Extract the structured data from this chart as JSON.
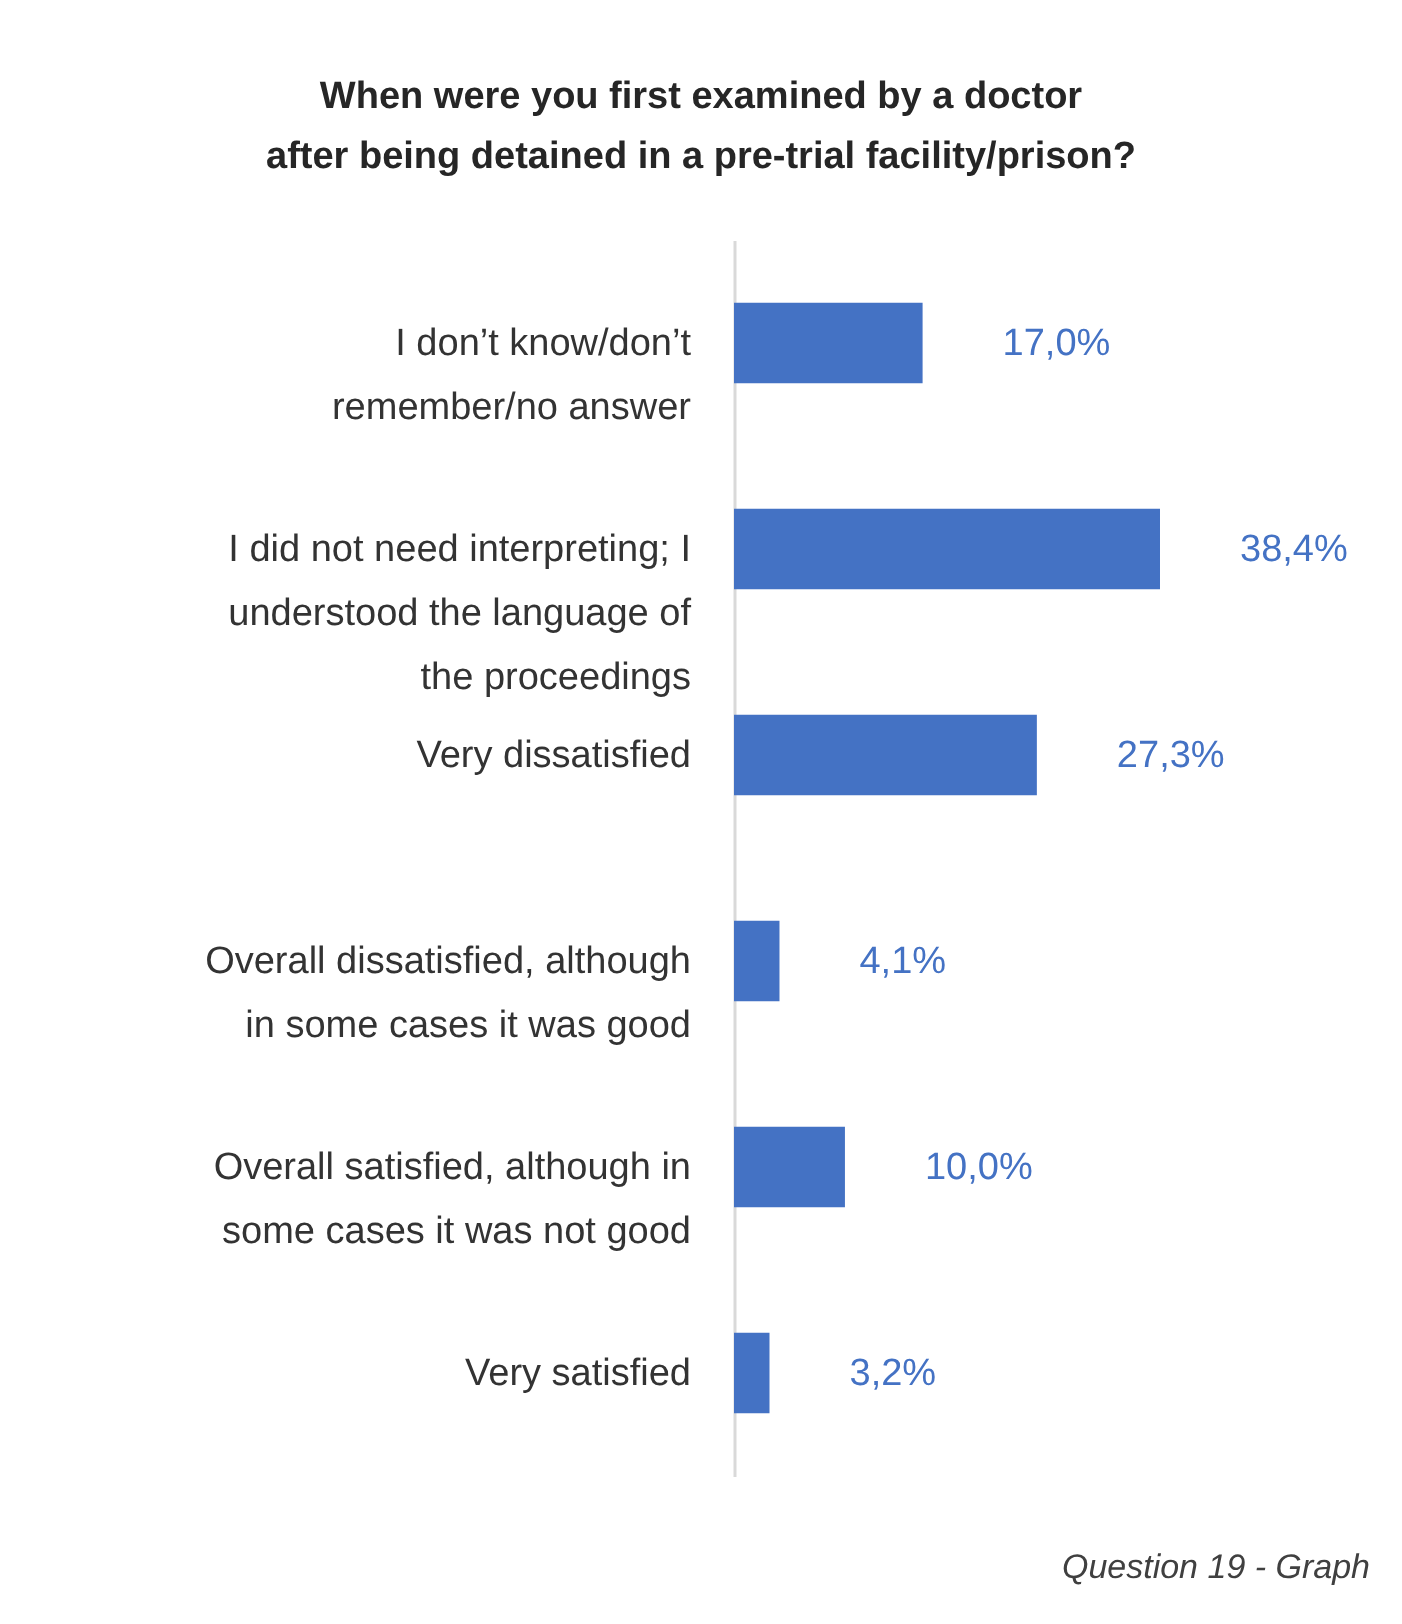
{
  "chart_data": {
    "type": "bar",
    "orientation": "horizontal",
    "title": "When were you first examined by a doctor\nafter being detained in a pre-trial facility/prison?",
    "categories": [
      "I don’t know/don’t remember/no answer",
      "I did not need interpreting; I understood the language of the proceedings",
      "Very dissatisfied",
      "Overall dissatisfied, although in some cases it was good",
      "Overall satisfied, although in some cases it was not good",
      "Very satisfied"
    ],
    "values": [
      17.0,
      38.4,
      27.3,
      4.1,
      10.0,
      3.2
    ],
    "color": "#4472c4",
    "value_labels": [
      "17,0%",
      "38,4%",
      "27,3%",
      "4,1%",
      "10,0%",
      "3,2%"
    ],
    "annotations": [
      "Question 19 - Graph"
    ]
  }
}
